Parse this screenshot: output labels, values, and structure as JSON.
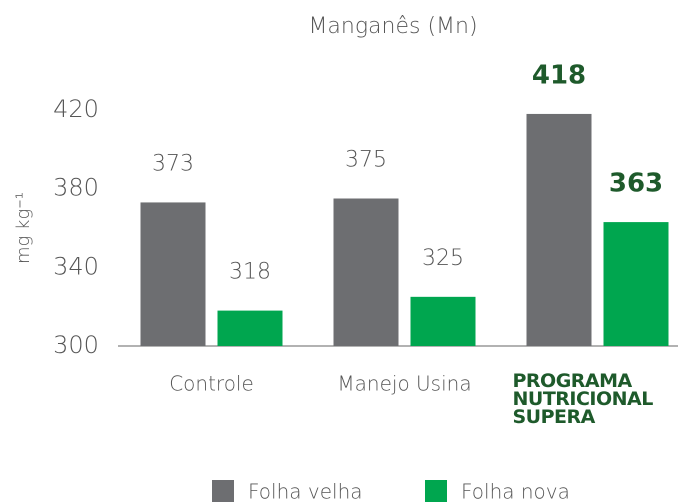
{
  "chart_data": {
    "type": "bar",
    "title": "Manganês (Mn)",
    "y_label": "mg kg⁻¹",
    "categories": [
      "Controle",
      "Manejo Usina",
      "PROGRAMA NUTRICIONAL SUPERA"
    ],
    "series": [
      {
        "name": "Folha velha",
        "color": "#6d6e71",
        "values": [
          373,
          375,
          418
        ],
        "label_colors": [
          "#555555",
          "#555555",
          "#1e5a2b"
        ]
      },
      {
        "name": "Folha nova",
        "color": "#00a64f",
        "values": [
          318,
          325,
          363
        ],
        "label_colors": [
          "#555555",
          "#555555",
          "#1e5a2b"
        ]
      }
    ],
    "ylim": [
      300,
      420
    ],
    "yticks": [
      300,
      340,
      380,
      420
    ],
    "grid": false,
    "legend": "bottom"
  }
}
